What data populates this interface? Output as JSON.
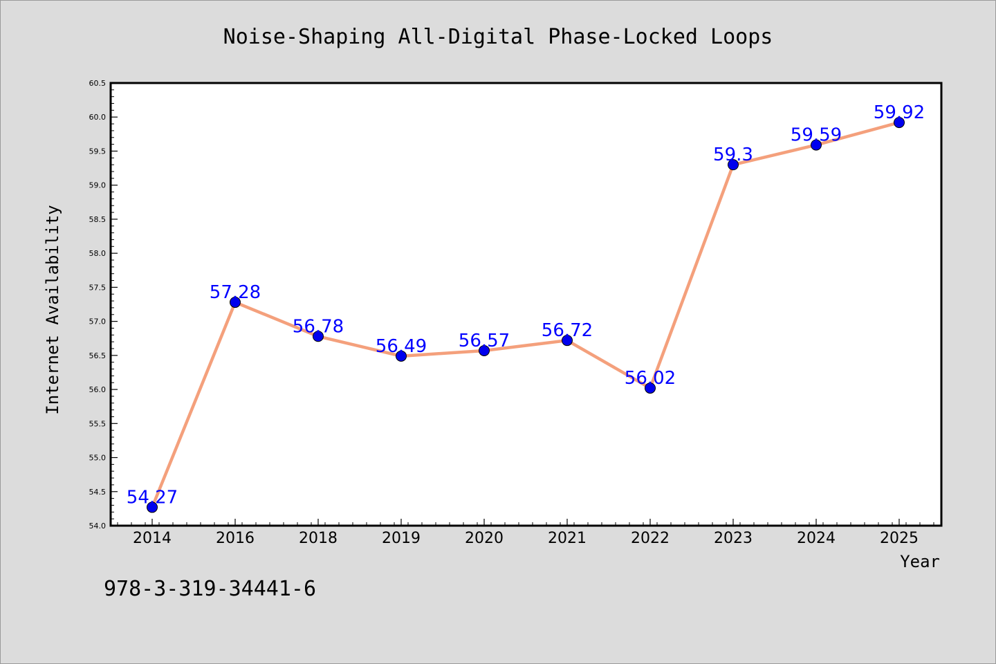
{
  "footer_code": "978-3-319-34441-6",
  "chart_data": {
    "type": "line",
    "title": "Noise-Shaping All-Digital Phase-Locked Loops",
    "xlabel": "Year",
    "ylabel": "Internet Availability",
    "categories": [
      "2014",
      "2016",
      "2018",
      "2019",
      "2020",
      "2021",
      "2022",
      "2023",
      "2024",
      "2025"
    ],
    "series": [
      {
        "values": [
          54.27,
          57.28,
          56.78,
          56.49,
          56.57,
          56.72,
          56.02,
          59.3,
          59.59,
          59.92
        ],
        "labels": [
          "54.27",
          "57.28",
          "56.78",
          "56.49",
          "56.57",
          "56.72",
          "56.02",
          "59.3",
          "59.59",
          "59.92"
        ],
        "line_color": "#f4a07c",
        "marker_color": "#0000ee",
        "label_color": "#0000ff"
      }
    ],
    "ylim": [
      54.0,
      60.5
    ],
    "yticks": [
      "54.0",
      "54.5",
      "55.0",
      "55.5",
      "56.0",
      "56.5",
      "57.0",
      "57.5",
      "58.0",
      "58.5",
      "59.0",
      "59.5",
      "60.0",
      "60.5"
    ],
    "grid": false,
    "legend": "none",
    "background": "#dcdcdc",
    "plot_background": "#ffffff"
  }
}
